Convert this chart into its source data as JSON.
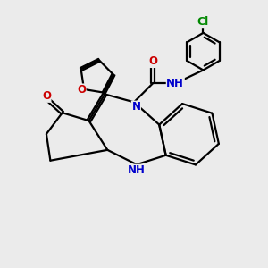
{
  "bg_color": "#ebebeb",
  "atom_colors": {
    "C": "#000000",
    "N": "#0000cc",
    "O": "#cc0000",
    "Cl": "#008800",
    "H": "#555555"
  },
  "bond_lw": 1.6,
  "font_size": 8.5,
  "fig_size": [
    3.0,
    3.0
  ],
  "dpi": 100
}
